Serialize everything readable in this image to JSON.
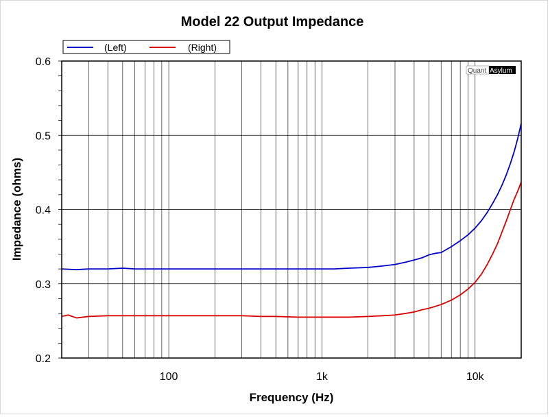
{
  "chart_data": {
    "type": "line",
    "title": "Model 22 Output Impedance",
    "xlabel": "Frequency (Hz)",
    "ylabel": "Impedance (ohms)",
    "xscale": "log",
    "xlim": [
      20,
      20000
    ],
    "ylim": [
      0.2,
      0.6
    ],
    "x_ticks": [
      {
        "value": 100,
        "label": "100"
      },
      {
        "value": 1000,
        "label": "1k"
      },
      {
        "value": 10000,
        "label": "10k"
      }
    ],
    "y_ticks": [
      {
        "value": 0.2,
        "label": "0.2"
      },
      {
        "value": 0.3,
        "label": "0.3"
      },
      {
        "value": 0.4,
        "label": "0.4"
      },
      {
        "value": 0.5,
        "label": "0.5"
      },
      {
        "value": 0.6,
        "label": "0.6"
      }
    ],
    "grid": true,
    "legend_position": "top-left",
    "series": [
      {
        "name": "(Left)",
        "color": "#0000cc",
        "points": [
          [
            20,
            0.32
          ],
          [
            25,
            0.319
          ],
          [
            30,
            0.32
          ],
          [
            40,
            0.32
          ],
          [
            50,
            0.321
          ],
          [
            60,
            0.32
          ],
          [
            80,
            0.32
          ],
          [
            100,
            0.32
          ],
          [
            150,
            0.32
          ],
          [
            200,
            0.32
          ],
          [
            300,
            0.32
          ],
          [
            500,
            0.32
          ],
          [
            800,
            0.32
          ],
          [
            1000,
            0.32
          ],
          [
            1200,
            0.32
          ],
          [
            1500,
            0.321
          ],
          [
            2000,
            0.322
          ],
          [
            2500,
            0.324
          ],
          [
            3000,
            0.326
          ],
          [
            3500,
            0.329
          ],
          [
            4000,
            0.332
          ],
          [
            4500,
            0.335
          ],
          [
            5000,
            0.339
          ],
          [
            5500,
            0.341
          ],
          [
            6000,
            0.342
          ],
          [
            7000,
            0.35
          ],
          [
            8000,
            0.358
          ],
          [
            9000,
            0.366
          ],
          [
            10000,
            0.375
          ],
          [
            11000,
            0.385
          ],
          [
            12000,
            0.396
          ],
          [
            13000,
            0.408
          ],
          [
            14000,
            0.42
          ],
          [
            15000,
            0.433
          ],
          [
            16000,
            0.447
          ],
          [
            17000,
            0.462
          ],
          [
            18000,
            0.478
          ],
          [
            19000,
            0.496
          ],
          [
            20000,
            0.516
          ]
        ]
      },
      {
        "name": "(Right)",
        "color": "#dd0000",
        "points": [
          [
            20,
            0.256
          ],
          [
            22,
            0.258
          ],
          [
            25,
            0.254
          ],
          [
            30,
            0.256
          ],
          [
            40,
            0.257
          ],
          [
            50,
            0.257
          ],
          [
            60,
            0.257
          ],
          [
            80,
            0.257
          ],
          [
            100,
            0.257
          ],
          [
            150,
            0.257
          ],
          [
            200,
            0.257
          ],
          [
            300,
            0.257
          ],
          [
            400,
            0.256
          ],
          [
            500,
            0.256
          ],
          [
            700,
            0.255
          ],
          [
            1000,
            0.255
          ],
          [
            1200,
            0.255
          ],
          [
            1500,
            0.255
          ],
          [
            2000,
            0.256
          ],
          [
            2500,
            0.257
          ],
          [
            3000,
            0.258
          ],
          [
            3500,
            0.26
          ],
          [
            4000,
            0.262
          ],
          [
            4500,
            0.265
          ],
          [
            5000,
            0.267
          ],
          [
            6000,
            0.272
          ],
          [
            7000,
            0.278
          ],
          [
            8000,
            0.285
          ],
          [
            9000,
            0.293
          ],
          [
            10000,
            0.302
          ],
          [
            11000,
            0.313
          ],
          [
            12000,
            0.326
          ],
          [
            13000,
            0.34
          ],
          [
            14000,
            0.354
          ],
          [
            15000,
            0.37
          ],
          [
            16000,
            0.385
          ],
          [
            17000,
            0.4
          ],
          [
            18000,
            0.414
          ],
          [
            19000,
            0.425
          ],
          [
            20000,
            0.437
          ]
        ]
      }
    ]
  },
  "watermark": {
    "part1": "Quant",
    "part2": "Asylum"
  }
}
